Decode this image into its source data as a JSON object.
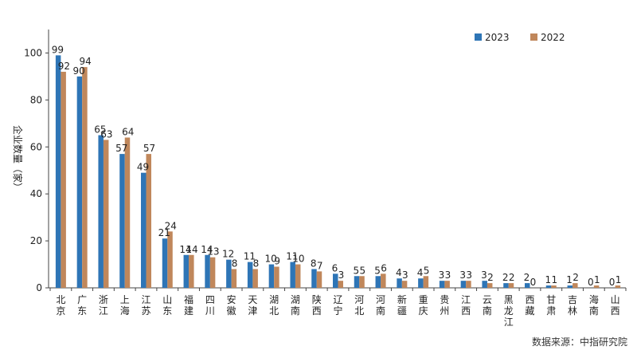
{
  "chart_data": {
    "type": "bar",
    "title": "",
    "xlabel": "",
    "ylabel": "企业数量（家）",
    "ylim": [
      0,
      110
    ],
    "yticks": [
      0,
      20,
      40,
      60,
      80,
      100
    ],
    "grid": false,
    "legend_position": "top-right",
    "categories": [
      "北京",
      "广东",
      "浙江",
      "上海",
      "江苏",
      "山东",
      "福建",
      "四川",
      "安徽",
      "天津",
      "湖北",
      "湖南",
      "陕西",
      "辽宁",
      "河北",
      "河南",
      "新疆",
      "重庆",
      "贵州",
      "江西",
      "云南",
      "黑龙江",
      "西藏",
      "甘肃",
      "吉林",
      "海南",
      "山西"
    ],
    "series": [
      {
        "name": "2023",
        "color": "#2e75b6",
        "values": [
          99,
          90,
          65,
          57,
          49,
          21,
          14,
          14,
          12,
          11,
          10,
          11,
          8,
          6,
          5,
          5,
          4,
          4,
          3,
          3,
          3,
          2,
          2,
          1,
          1,
          0,
          0
        ]
      },
      {
        "name": "2022",
        "color": "#c0875b",
        "values": [
          92,
          94,
          63,
          64,
          57,
          24,
          14,
          13,
          8,
          8,
          9,
          10,
          7,
          3,
          5,
          6,
          3,
          5,
          3,
          3,
          2,
          2,
          0,
          1,
          2,
          1,
          1
        ]
      }
    ],
    "source": "数据来源：中指研究院"
  }
}
